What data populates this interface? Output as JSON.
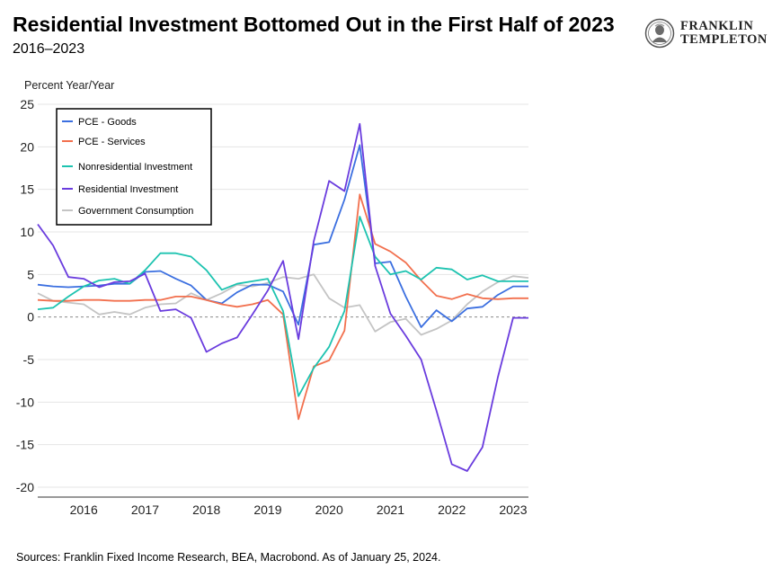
{
  "header": {
    "title": "Residential Investment Bottomed Out in the First Half of 2023",
    "subtitle": "2016–2023",
    "logo_line1": "FRANKLIN",
    "logo_line2": "TEMPLETON"
  },
  "footer": {
    "source": "Sources: Franklin Fixed Income Research, BEA, Macrobond. As of January 25, 2024."
  },
  "chart_data": {
    "type": "line",
    "ylabel": "Percent Year/Year",
    "ylim": [
      -20,
      25
    ],
    "yticks": [
      25,
      20,
      15,
      10,
      5,
      0,
      -5,
      -10,
      -15,
      -20
    ],
    "xlim": [
      2015.75,
      2023.75
    ],
    "x_tick_labels": [
      "2016",
      "2017",
      "2018",
      "2019",
      "2020",
      "2021",
      "2022",
      "2023"
    ],
    "zero_line": "dashed",
    "grid": "horizontal",
    "legend_position": "top-left",
    "x": [
      2015.75,
      2016.0,
      2016.25,
      2016.5,
      2016.75,
      2017.0,
      2017.25,
      2017.5,
      2017.75,
      2018.0,
      2018.25,
      2018.5,
      2018.75,
      2019.0,
      2019.25,
      2019.5,
      2019.75,
      2020.0,
      2020.25,
      2020.5,
      2020.75,
      2021.0,
      2021.25,
      2021.5,
      2021.75,
      2022.0,
      2022.25,
      2022.5,
      2022.75,
      2023.0,
      2023.25,
      2023.5,
      2023.75
    ],
    "series": [
      {
        "name": "PCE - Goods",
        "color": "#3b6fe0",
        "values": [
          3.8,
          3.6,
          3.5,
          3.6,
          3.7,
          3.9,
          3.9,
          5.3,
          5.4,
          4.5,
          3.7,
          2.0,
          1.6,
          2.9,
          3.8,
          3.8,
          3.0,
          -0.9,
          8.5,
          8.8,
          13.8,
          20.2,
          6.3,
          6.5,
          2.4,
          -1.2,
          0.8,
          -0.5,
          1.0,
          1.2,
          2.6,
          3.6,
          3.6
        ]
      },
      {
        "name": "PCE - Services",
        "color": "#f2704e",
        "values": [
          2.0,
          1.9,
          1.9,
          2.0,
          2.0,
          1.9,
          1.9,
          2.0,
          2.0,
          2.4,
          2.4,
          2.0,
          1.5,
          1.2,
          1.5,
          2.0,
          0.3,
          -12.0,
          -5.8,
          -5.1,
          -1.6,
          14.4,
          8.6,
          7.7,
          6.4,
          4.3,
          2.5,
          2.1,
          2.7,
          2.2,
          2.1,
          2.2,
          2.2
        ]
      },
      {
        "name": "Nonresidential Investment",
        "color": "#1dc3b0",
        "values": [
          0.9,
          1.1,
          2.4,
          3.6,
          4.3,
          4.5,
          3.9,
          5.5,
          7.5,
          7.5,
          7.1,
          5.5,
          3.2,
          3.9,
          4.2,
          4.5,
          0.7,
          -9.3,
          -6.0,
          -3.5,
          0.7,
          11.8,
          7.1,
          5.0,
          5.4,
          4.4,
          5.8,
          5.6,
          4.4,
          4.9,
          4.2,
          4.2,
          4.2
        ]
      },
      {
        "name": "Residential Investment",
        "color": "#6a3cde",
        "values": [
          10.9,
          8.4,
          4.7,
          4.5,
          3.5,
          4.1,
          4.2,
          5.1,
          0.7,
          0.9,
          -0.1,
          -4.1,
          -3.1,
          -2.4,
          0.3,
          3.1,
          6.6,
          -2.6,
          8.9,
          16.0,
          14.8,
          22.7,
          6.0,
          0.4,
          -2.2,
          -5.0,
          -11.0,
          -17.3,
          -18.1,
          -15.3,
          -7.1,
          -0.1,
          -0.1
        ]
      },
      {
        "name": "Government Consumption",
        "color": "#c4c4c4",
        "values": [
          2.8,
          1.9,
          1.7,
          1.5,
          0.3,
          0.6,
          0.3,
          1.1,
          1.5,
          1.6,
          2.8,
          2.0,
          2.8,
          3.8,
          3.6,
          4.0,
          4.7,
          4.5,
          5.0,
          2.2,
          1.1,
          1.4,
          -1.7,
          -0.6,
          -0.2,
          -2.1,
          -1.4,
          -0.4,
          1.5,
          3.0,
          4.1,
          4.8,
          4.6
        ]
      }
    ]
  }
}
